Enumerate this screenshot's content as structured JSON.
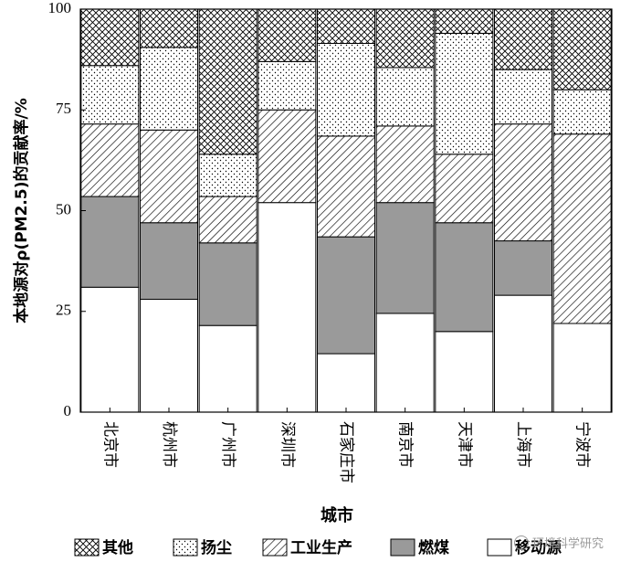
{
  "chart_data": {
    "type": "bar",
    "stacked": true,
    "percent": true,
    "xlabel": "城市",
    "ylabel": "本地源对ρ(PM2.5)的贡献率/%",
    "ylim": [
      0,
      100
    ],
    "yticks": [
      0,
      25,
      50,
      75,
      100
    ],
    "categories": [
      "北京市",
      "杭州市",
      "广州市",
      "深圳市",
      "石家庄市",
      "南京市",
      "天津市",
      "上海市",
      "宁波市"
    ],
    "series": [
      {
        "name": "移动源",
        "pattern": "white",
        "values": [
          31,
          28,
          21.5,
          52,
          14.5,
          24.5,
          20,
          29,
          22
        ]
      },
      {
        "name": "燃煤",
        "pattern": "gray",
        "values": [
          22.5,
          19,
          20.5,
          0,
          29,
          27.5,
          27,
          13.5,
          0
        ]
      },
      {
        "name": "工业生产",
        "pattern": "diagonal",
        "values": [
          18,
          23,
          11.5,
          23,
          25,
          19,
          17,
          29,
          47
        ]
      },
      {
        "name": "扬尘",
        "pattern": "dots",
        "values": [
          14.5,
          20.5,
          10.5,
          12,
          23,
          14.5,
          30,
          13.5,
          11
        ]
      },
      {
        "name": "其他",
        "pattern": "crosshatch",
        "values": [
          14,
          9.5,
          36,
          13,
          8.5,
          14.5,
          6,
          15,
          20
        ]
      }
    ],
    "legend_order": [
      "其他",
      "扬尘",
      "工业生产",
      "燃煤",
      "移动源"
    ],
    "legend_position": "bottom",
    "grid": false
  },
  "watermark": "环境科学研究"
}
